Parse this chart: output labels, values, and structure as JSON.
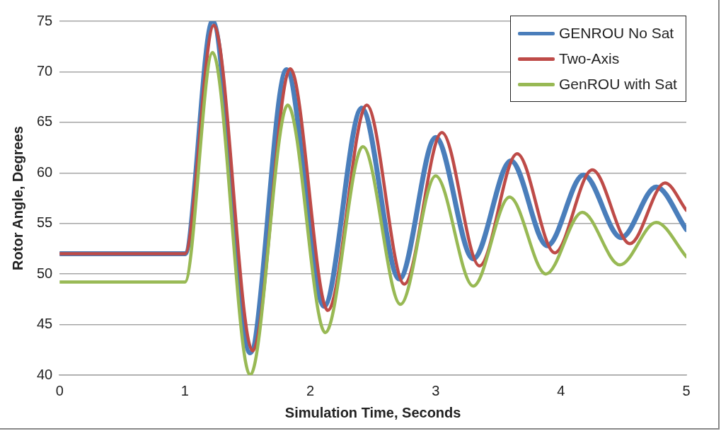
{
  "chart_data": {
    "type": "line",
    "xlabel": "Simulation Time, Seconds",
    "ylabel": "Rotor Angle, Degrees",
    "xlim": [
      0,
      5
    ],
    "xticks": [
      0,
      1,
      2,
      3,
      4,
      5
    ],
    "ylim": [
      40,
      75
    ],
    "yticks": [
      40,
      45,
      50,
      55,
      60,
      65,
      70,
      75
    ],
    "grid": "y",
    "legend": "top right",
    "marker": "none",
    "line_style": "solid",
    "series": [
      {
        "name": "GENROU No Sat",
        "color": "#4a7ebb",
        "x": [
          0,
          1.0,
          1.22,
          1.52,
          1.81,
          2.11,
          2.41,
          2.71,
          3.0,
          3.3,
          3.6,
          3.89,
          4.18,
          4.48,
          4.76,
          5
        ],
        "values": [
          52,
          52,
          75,
          42.2,
          70.2,
          46.8,
          66.4,
          49.5,
          63.5,
          51.5,
          61.2,
          52.8,
          59.8,
          53.6,
          58.6,
          54.4
        ]
      },
      {
        "name": "Two-Axis",
        "color": "#be4b48",
        "x": [
          0,
          1.0,
          1.23,
          1.54,
          1.84,
          2.14,
          2.45,
          2.75,
          3.05,
          3.35,
          3.65,
          3.95,
          4.25,
          4.55,
          4.83,
          5
        ],
        "values": [
          52,
          52,
          74.6,
          42.4,
          70.3,
          46.4,
          66.7,
          49.0,
          64.0,
          50.8,
          61.9,
          52.1,
          60.3,
          53.0,
          59.0,
          56.3
        ]
      },
      {
        "name": "GenROU with Sat",
        "color": "#98b954",
        "x": [
          0,
          1.0,
          1.22,
          1.52,
          1.82,
          2.12,
          2.42,
          2.72,
          3.0,
          3.3,
          3.59,
          3.88,
          4.17,
          4.47,
          4.76,
          5
        ],
        "values": [
          49.2,
          49.2,
          71.9,
          40,
          66.7,
          44.2,
          62.6,
          47.0,
          59.7,
          48.8,
          57.6,
          50.0,
          56.1,
          50.9,
          55.1,
          51.7
        ]
      }
    ]
  }
}
